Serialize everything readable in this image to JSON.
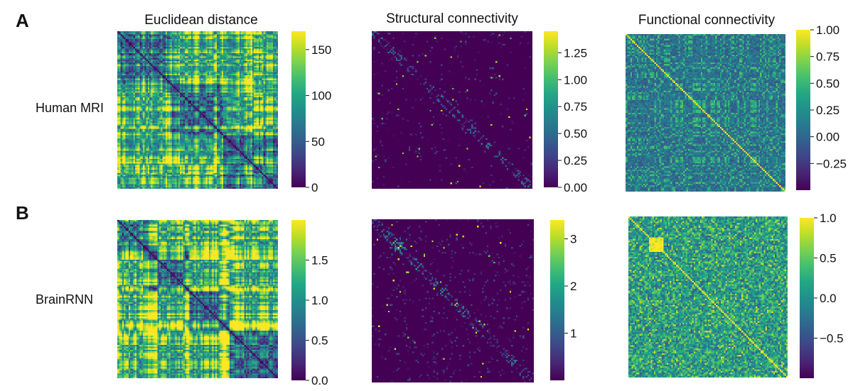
{
  "figure": {
    "panel_a_letter": "A",
    "panel_b_letter": "B",
    "column_titles": [
      "Euclidean distance",
      "Structural connectivity",
      "Functional connectivity"
    ],
    "row_labels": [
      "Human MRI",
      "BrainRNN"
    ]
  },
  "chart_data": [
    {
      "type": "heatmap",
      "row": "Human MRI",
      "title": "Euclidean distance",
      "matrix_size": 100,
      "value_range": [
        0,
        170
      ],
      "diagonal_value": 0,
      "colorbar_ticks": [
        0,
        50,
        100,
        150
      ],
      "colorbar_tick_labels": [
        "0",
        "50",
        "100",
        "150"
      ],
      "colormap": "viridis"
    },
    {
      "type": "heatmap",
      "row": "Human MRI",
      "title": "Structural connectivity",
      "matrix_size": 100,
      "value_range": [
        0,
        1.45
      ],
      "diagonal_value": 0,
      "colorbar_ticks": [
        0,
        0.25,
        0.5,
        0.75,
        1.0,
        1.25
      ],
      "colorbar_tick_labels": [
        "0.00",
        "0.25",
        "0.50",
        "0.75",
        "1.00",
        "1.25"
      ],
      "colormap": "viridis"
    },
    {
      "type": "heatmap",
      "row": "Human MRI",
      "title": "Functional connectivity",
      "matrix_size": 100,
      "value_range": [
        -0.5,
        1.0
      ],
      "diagonal_value": 1.0,
      "colorbar_ticks": [
        -0.25,
        0,
        0.25,
        0.5,
        0.75,
        1.0
      ],
      "colorbar_tick_labels": [
        "−0.25",
        "0.00",
        "0.25",
        "0.50",
        "0.75",
        "1.00"
      ],
      "colormap": "viridis"
    },
    {
      "type": "heatmap",
      "row": "BrainRNN",
      "title": "Euclidean distance",
      "matrix_size": 100,
      "value_range": [
        0,
        2.0
      ],
      "diagonal_value": 0,
      "colorbar_ticks": [
        0,
        0.5,
        1.0,
        1.5
      ],
      "colorbar_tick_labels": [
        "0.0",
        "0.5",
        "1.0",
        "1.5"
      ],
      "colormap": "viridis"
    },
    {
      "type": "heatmap",
      "row": "BrainRNN",
      "title": "Structural connectivity",
      "matrix_size": 100,
      "value_range": [
        0,
        3.4
      ],
      "diagonal_value": 0,
      "colorbar_ticks": [
        1,
        2,
        3
      ],
      "colorbar_tick_labels": [
        "1",
        "2",
        "3"
      ],
      "colormap": "viridis"
    },
    {
      "type": "heatmap",
      "row": "BrainRNN",
      "title": "Functional connectivity",
      "matrix_size": 100,
      "value_range": [
        -1.0,
        1.0
      ],
      "diagonal_value": 1.0,
      "colorbar_ticks": [
        -0.5,
        0,
        0.5,
        1.0
      ],
      "colorbar_tick_labels": [
        "−0.5",
        "0.0",
        "0.5",
        "1.0"
      ],
      "colormap": "viridis"
    }
  ]
}
